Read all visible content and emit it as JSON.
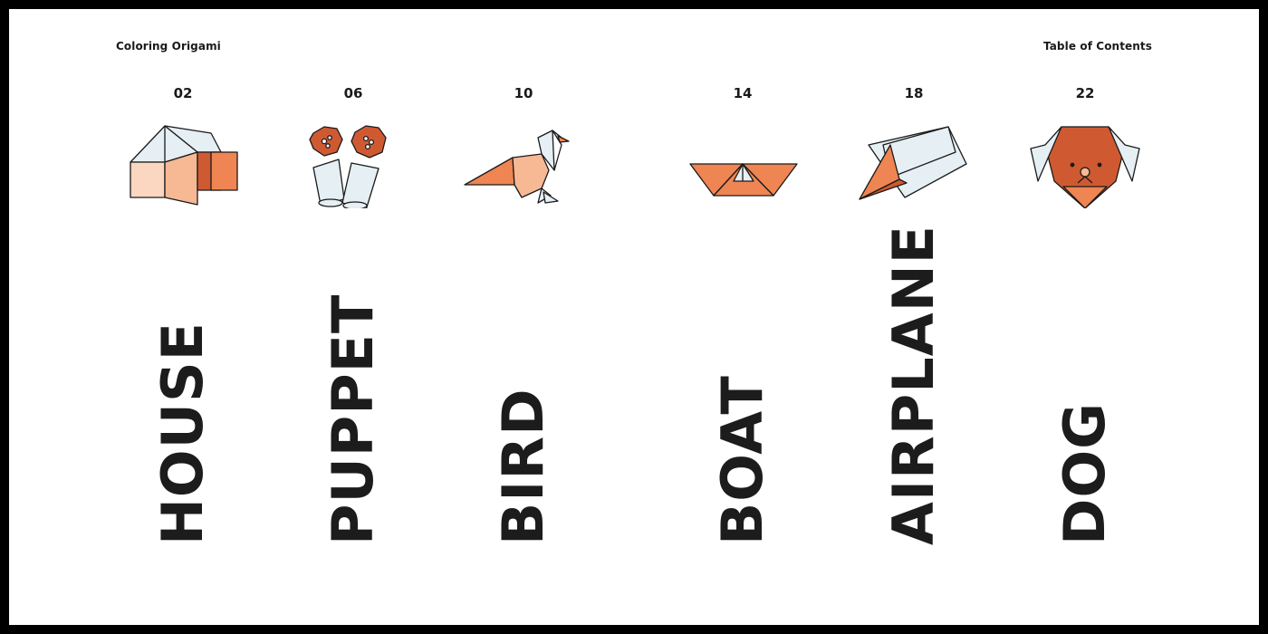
{
  "header": {
    "left": "Coloring Origami",
    "right": "Table of Contents"
  },
  "entries": [
    {
      "page": "02",
      "title": "HOUSE",
      "icon": "house-icon"
    },
    {
      "page": "06",
      "title": "PUPPET",
      "icon": "puppet-icon"
    },
    {
      "page": "10",
      "title": "BIRD",
      "icon": "bird-icon"
    },
    {
      "page": "14",
      "title": "BOAT",
      "icon": "boat-icon"
    },
    {
      "page": "18",
      "title": "AIRPLANE",
      "icon": "airplane-icon"
    },
    {
      "page": "22",
      "title": "DOG",
      "icon": "dog-icon"
    }
  ],
  "colors": {
    "orange_dark": "#cf5a32",
    "orange": "#ef8552",
    "peach": "#f7b894",
    "peach_light": "#fbd6c1",
    "paper_blue": "#e6eff3",
    "ink": "#1a1a1a"
  }
}
